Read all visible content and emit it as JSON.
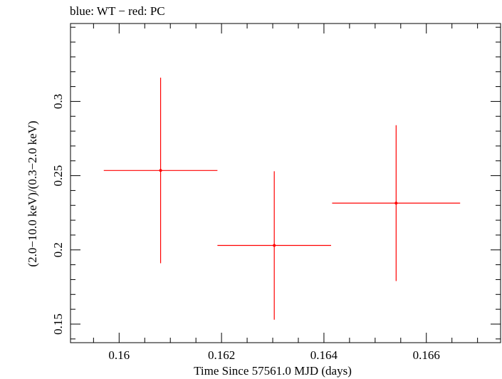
{
  "chart_data": {
    "type": "scatter",
    "title": "blue: WT − red: PC",
    "xlabel": "Time Since 57561.0 MJD (days)",
    "ylabel": "(2.0−10.0 keV)/(0.3−2.0 keV)",
    "xlim": [
      0.15905,
      0.16745
    ],
    "ylim": [
      0.1375,
      0.3525
    ],
    "xticks": [
      {
        "value": 0.16,
        "label": "0.16"
      },
      {
        "value": 0.162,
        "label": "0.162"
      },
      {
        "value": 0.164,
        "label": "0.164"
      },
      {
        "value": 0.166,
        "label": "0.166"
      }
    ],
    "yticks": [
      {
        "value": 0.15,
        "label": "0.15"
      },
      {
        "value": 0.2,
        "label": "0.2"
      },
      {
        "value": 0.25,
        "label": "0.25"
      },
      {
        "value": 0.3,
        "label": "0.3"
      }
    ],
    "series": [
      {
        "name": "PC",
        "color": "#ff0000",
        "points": [
          {
            "x": 0.16081,
            "xerr": 0.00111,
            "y": 0.2535,
            "yerr_low": 0.0625,
            "yerr_high": 0.0625
          },
          {
            "x": 0.16303,
            "xerr": 0.00111,
            "y": 0.203,
            "yerr_low": 0.05,
            "yerr_high": 0.05
          },
          {
            "x": 0.16541,
            "xerr": 0.00125,
            "y": 0.2315,
            "yerr_low": 0.0525,
            "yerr_high": 0.0525
          }
        ]
      }
    ]
  }
}
